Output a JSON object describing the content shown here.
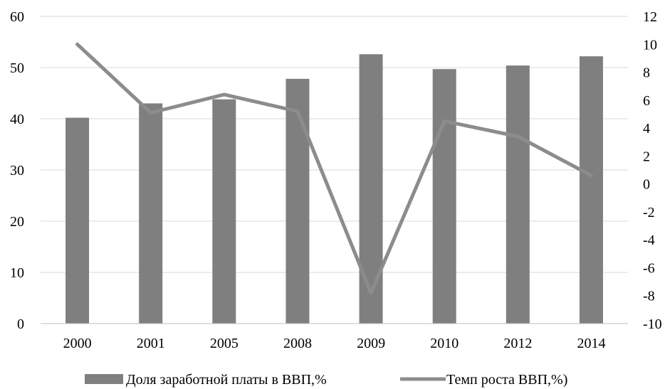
{
  "chart_data": {
    "type": "bar",
    "categories": [
      "2000",
      "2001",
      "2005",
      "2008",
      "2009",
      "2010",
      "2012",
      "2014"
    ],
    "series": [
      {
        "name": "Доля заработной платы в ВВП,%",
        "type": "bar",
        "axis": "left",
        "values": [
          40.2,
          43.0,
          43.8,
          47.8,
          52.6,
          49.7,
          50.4,
          52.2
        ]
      },
      {
        "name": "Темп роста ВВП,%)",
        "type": "line",
        "axis": "right",
        "values": [
          10.0,
          5.1,
          6.4,
          5.2,
          -7.8,
          4.5,
          3.4,
          0.6
        ]
      }
    ],
    "ylim_left": [
      0,
      60
    ],
    "yticks_left": [
      "0",
      "10",
      "20",
      "30",
      "40",
      "50",
      "60"
    ],
    "ylim_right": [
      -10,
      12
    ],
    "yticks_right": [
      "-10",
      "-8",
      "-6",
      "-4",
      "-2",
      "0",
      "2",
      "4",
      "6",
      "8",
      "10",
      "12"
    ],
    "title": "",
    "xlabel": "",
    "ylabel": "",
    "grid": true,
    "legend_position": "bottom",
    "colors": {
      "bar": "#7f7f7f",
      "line": "#8c8c8c",
      "grid": "#d9d9d9",
      "axis": "#bfbfbf"
    }
  }
}
